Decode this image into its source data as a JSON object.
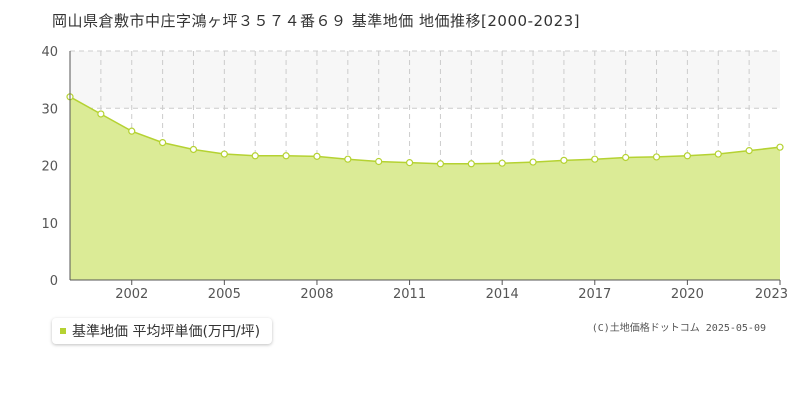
{
  "header": {
    "title": "岡山県倉敷市中庄字鴻ヶ坪３５７４番６９ 基準地価 地価推移[2000-2023]"
  },
  "legend": {
    "label": "基準地価 平均坪単価(万円/坪)"
  },
  "footer": {
    "copyright": "(C)土地価格ドットコム 2025-05-09"
  },
  "colors": {
    "fill": "#dbeb96",
    "line": "#b5d232",
    "marker_fill": "#ffffff",
    "marker_stroke": "#b5d232",
    "grid": "#cccccc",
    "upper_band": "#f7f7f7",
    "axis": "#555555",
    "legend_swatch": "#b5d232"
  },
  "chart_data": {
    "type": "area",
    "title": "",
    "xlabel": "",
    "ylabel": "",
    "ylim": [
      0,
      40
    ],
    "yticks": [
      0,
      10,
      20,
      30,
      40
    ],
    "xlim": [
      2000,
      2023
    ],
    "xtick_labels": [
      "2002",
      "2005",
      "2008",
      "2011",
      "2014",
      "2017",
      "2020",
      "2023"
    ],
    "grid": true,
    "legend_position": "bottom-left",
    "series": [
      {
        "name": "基準地価 平均坪単価(万円/坪)",
        "x": [
          2000,
          2001,
          2002,
          2003,
          2004,
          2005,
          2006,
          2007,
          2008,
          2009,
          2010,
          2011,
          2012,
          2013,
          2014,
          2015,
          2016,
          2017,
          2018,
          2019,
          2020,
          2021,
          2022,
          2023
        ],
        "values": [
          32.0,
          29.0,
          26.0,
          24.0,
          22.8,
          22.0,
          21.7,
          21.7,
          21.6,
          21.1,
          20.7,
          20.5,
          20.3,
          20.3,
          20.4,
          20.6,
          20.9,
          21.1,
          21.4,
          21.5,
          21.7,
          22.0,
          22.6,
          23.2
        ]
      }
    ]
  }
}
